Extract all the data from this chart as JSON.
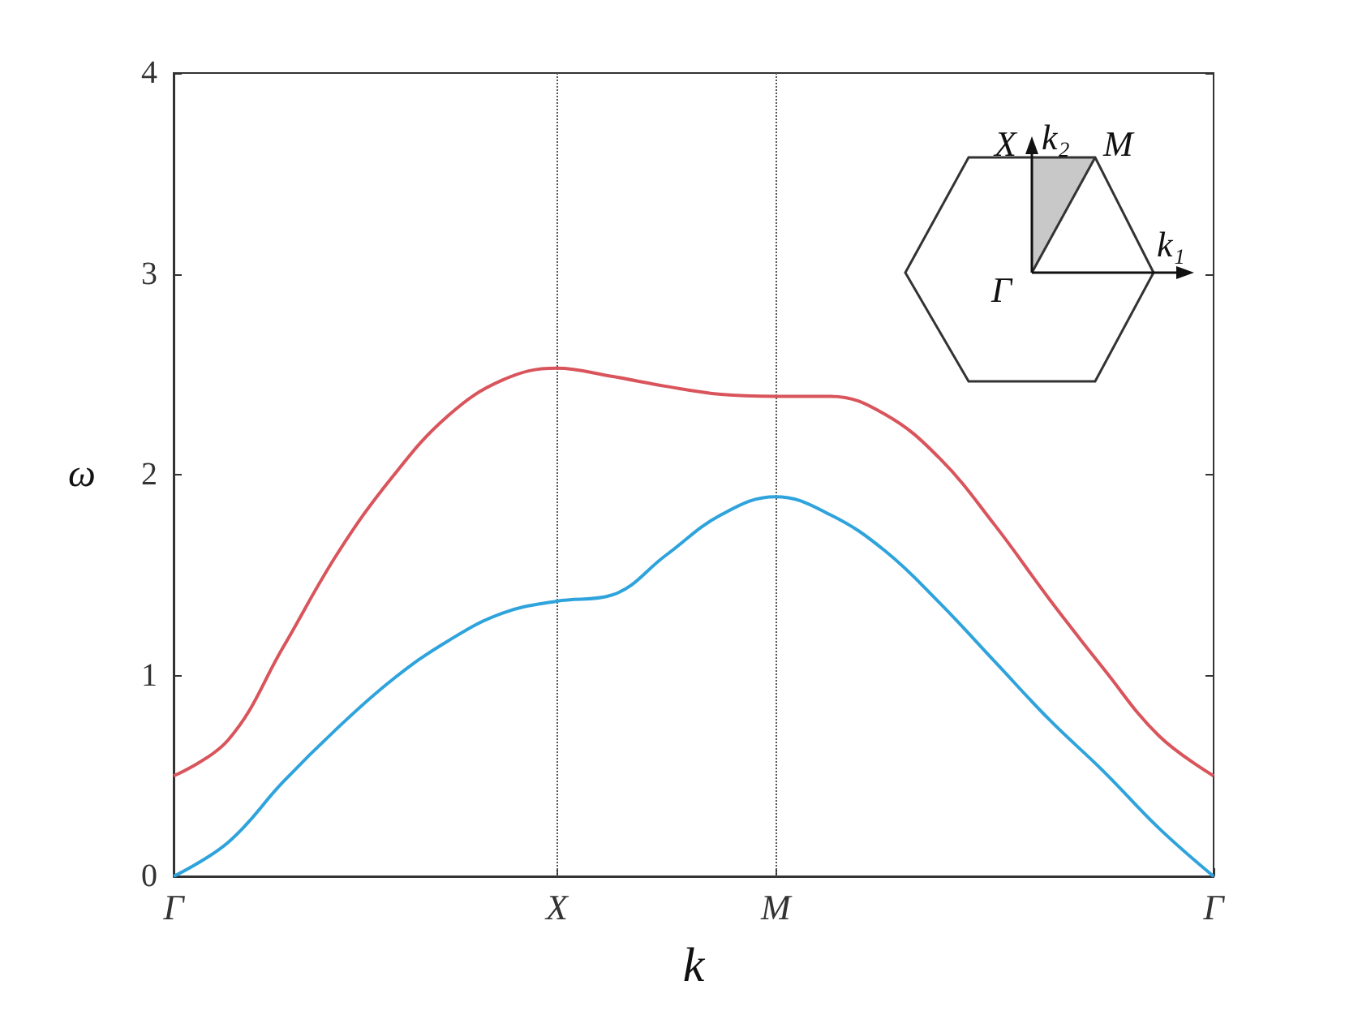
{
  "chart_data": {
    "type": "line",
    "xlabel": "k",
    "ylabel": "ω",
    "categories": [
      "Γ",
      null,
      null,
      null,
      null,
      null,
      null,
      "X",
      null,
      null,
      null,
      "M",
      null,
      null,
      null,
      null,
      null,
      null,
      null,
      "Γ"
    ],
    "series": [
      {
        "color": "#d9545b",
        "values": [
          0.5,
          0.68,
          1.14,
          1.61,
          1.99,
          2.29,
          2.47,
          2.53,
          2.49,
          2.44,
          2.4,
          2.39,
          2.39,
          2.3,
          2.08,
          1.75,
          1.38,
          1.03,
          0.7,
          0.5
        ]
      },
      {
        "color": "#2ea3dc",
        "values": [
          0,
          0.17,
          0.47,
          0.74,
          0.98,
          1.17,
          1.31,
          1.37,
          1.4,
          1.6,
          1.8,
          1.89,
          1.8,
          1.62,
          1.36,
          1.07,
          0.78,
          0.52,
          0.24,
          0
        ]
      }
    ],
    "ylim": [
      0,
      4
    ],
    "yticks": [
      0,
      1,
      2,
      3,
      4
    ],
    "ref_lines": [
      {
        "axis": "x",
        "value": "X",
        "color": "#555555",
        "line_style": "dotted"
      },
      {
        "axis": "x",
        "value": "M",
        "color": "#555555",
        "line_style": "dotted"
      }
    ],
    "annotations": [
      "X",
      "k₂",
      "M",
      "Γ",
      "k₁"
    ],
    "marker": "none",
    "line_style": "solid"
  }
}
